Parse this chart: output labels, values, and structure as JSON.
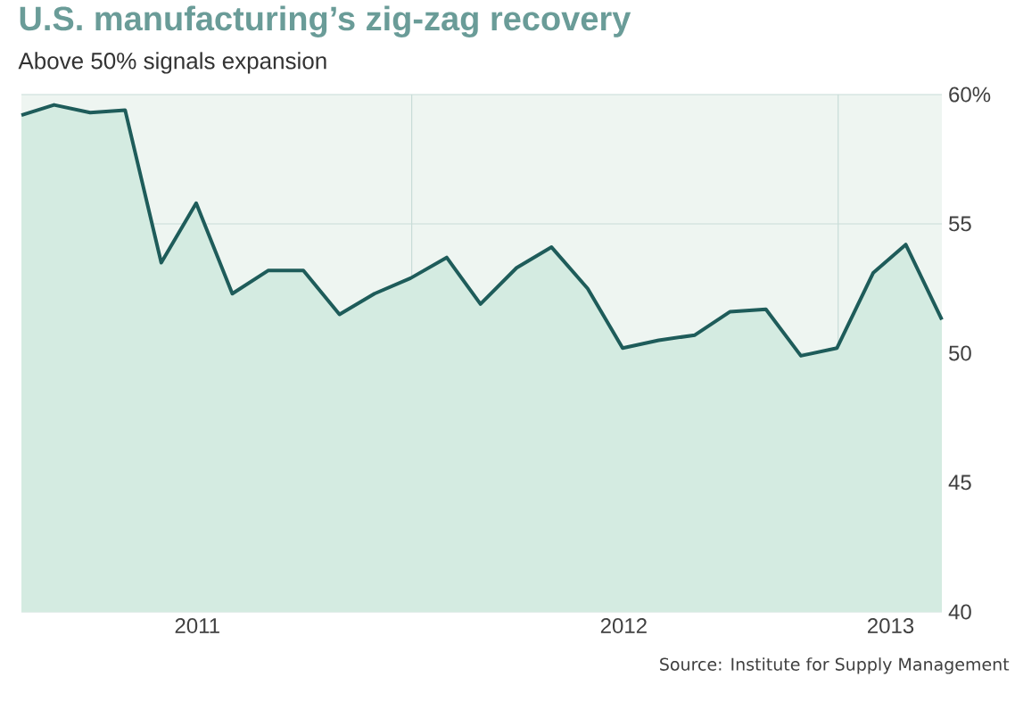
{
  "chart_data": {
    "type": "area",
    "title": "U.S. manufacturing’s zig-zag recovery",
    "subtitle": "Above 50% signals expansion",
    "x": [
      "2011-01-31",
      "2011-02-28",
      "2011-03-31",
      "2011-04-30",
      "2011-05-31",
      "2011-06-30",
      "2011-07-31",
      "2011-08-31",
      "2011-09-30",
      "2011-10-31",
      "2011-11-30",
      "2011-12-31",
      "2012-01-31",
      "2012-02-29",
      "2012-03-31",
      "2012-04-30",
      "2012-05-31",
      "2012-06-30",
      "2012-07-31",
      "2012-08-31",
      "2012-09-30",
      "2012-10-31",
      "2012-11-30",
      "2012-12-31",
      "2013-01-31",
      "2013-02-28",
      "2013-03-31"
    ],
    "series": [
      {
        "color": "#1e5c5a",
        "values": [
          59.2,
          59.6,
          59.3,
          59.4,
          53.5,
          55.8,
          52.3,
          53.2,
          53.2,
          51.5,
          52.3,
          52.9,
          53.7,
          51.9,
          53.3,
          54.1,
          52.5,
          50.2,
          50.5,
          50.7,
          51.6,
          51.7,
          49.9,
          50.2,
          53.1,
          54.2,
          51.3
        ]
      }
    ],
    "xlim": [
      "2011-01-31",
      "2013-03-31"
    ],
    "xticks": [
      {
        "value": "2011-07-01",
        "label": "2011"
      },
      {
        "value": "2012-01-01",
        "label": null
      },
      {
        "value": "2012-07-01",
        "label": "2012"
      },
      {
        "value": "2013-01-01",
        "label": null
      },
      {
        "value": "2013-02-15",
        "label": "2013"
      }
    ],
    "ylim": [
      40,
      60
    ],
    "yticks": [
      40,
      45,
      50,
      55,
      {
        "value": 60,
        "label": "60%"
      }
    ],
    "grid": true,
    "annotations": [
      "Source: Institute for Supply Management"
    ]
  }
}
